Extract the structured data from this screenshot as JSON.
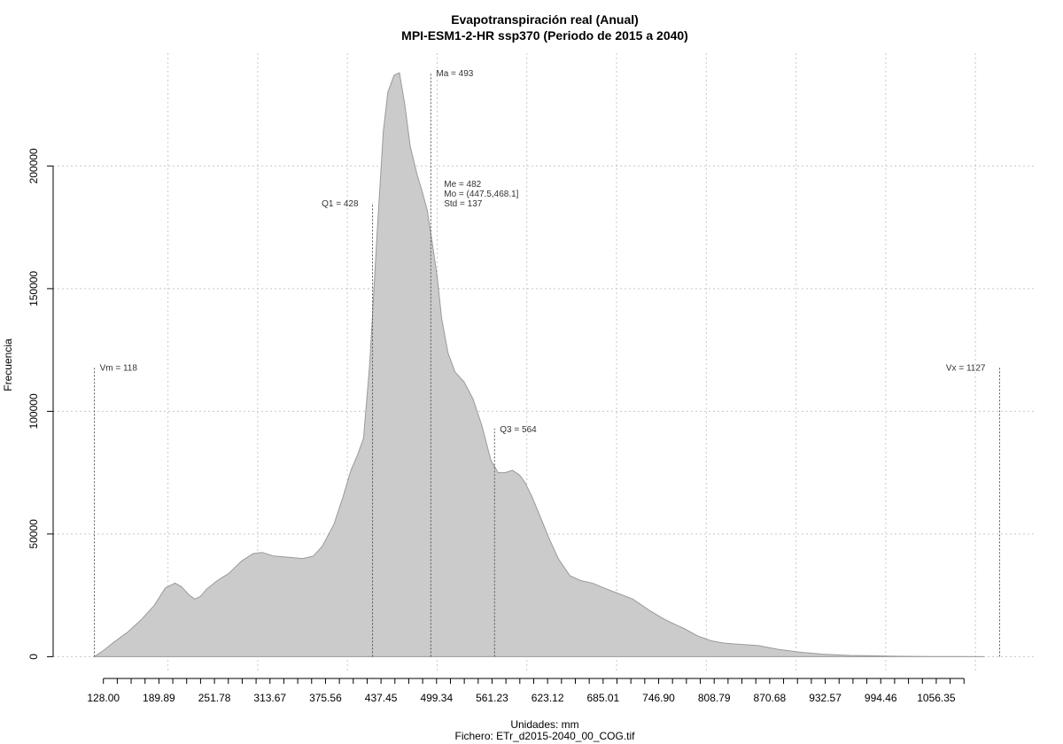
{
  "chart_data": {
    "type": "area",
    "title": "Evapotranspiración real (Anual)",
    "subtitle": "MPI-ESM1-2-HR ssp370 (Periodo de 2015 a 2040)",
    "xlabel": "Unidades: mm",
    "ylabel": "Frecuencia",
    "footer": "Fichero: ETr_d2015-2040_00_COG.tif",
    "xlim": [
      72,
      1168
    ],
    "ylim": [
      -6000,
      246000
    ],
    "grid": true,
    "x_tick_labels": [
      "128.00",
      "189.89",
      "251.78",
      "313.67",
      "375.56",
      "437.45",
      "499.34",
      "561.23",
      "623.12",
      "685.01",
      "746.90",
      "808.79",
      "870.68",
      "932.57",
      "994.46",
      "1056.35"
    ],
    "x_ticks": [
      128.0,
      143.47,
      158.94,
      174.42,
      189.89,
      205.36,
      220.83,
      236.31,
      251.78,
      267.25,
      282.72,
      298.2,
      313.67,
      329.14,
      344.61,
      360.09,
      375.56,
      391.03,
      406.5,
      421.98,
      437.45,
      452.92,
      468.39,
      483.87,
      499.34,
      514.81,
      530.28,
      545.76,
      561.23,
      576.7,
      592.17,
      607.65,
      623.12,
      638.59,
      654.06,
      669.54,
      685.01,
      700.48,
      715.95,
      731.43,
      746.9,
      762.37,
      777.84,
      793.32,
      808.79,
      824.26,
      839.73,
      855.21,
      870.68,
      886.15,
      901.62,
      917.1,
      932.57,
      948.04,
      963.51,
      978.99,
      994.46,
      1009.93,
      1025.4,
      1040.88,
      1056.35,
      1071.82,
      1087.29
    ],
    "y_ticks": [
      0,
      50000,
      100000,
      150000,
      200000
    ],
    "y_tick_labels": [
      "0",
      "50000",
      "100000",
      "150000",
      "200000"
    ],
    "x_grid": [
      200,
      300,
      400,
      500,
      600,
      700,
      800,
      900,
      1000,
      1100
    ],
    "series": [
      {
        "x": [
          118,
          128,
          140,
          155,
          170,
          185,
          197,
          208,
          215,
          224,
          230,
          236,
          243,
          255,
          268,
          282,
          295,
          305,
          318,
          335,
          350,
          362,
          372,
          385,
          395,
          404,
          411,
          418,
          425,
          433,
          440,
          445,
          452,
          458,
          464,
          470,
          478,
          483,
          489,
          494,
          500,
          505,
          512,
          520,
          530,
          540,
          550,
          560,
          568,
          576,
          584,
          592,
          598,
          606,
          615,
          625,
          635,
          648,
          660,
          673,
          686,
          700,
          718,
          736,
          752,
          763,
          775,
          790,
          805,
          820,
          838,
          858,
          880,
          905,
          930,
          960,
          990,
          1020,
          1050,
          1080,
          1110
        ],
        "y": [
          0,
          2500,
          6000,
          10000,
          15000,
          21000,
          28000,
          30000,
          28500,
          25000,
          23500,
          24500,
          27500,
          31000,
          34000,
          39000,
          42000,
          42500,
          41000,
          40500,
          40000,
          41000,
          45000,
          54000,
          65000,
          76000,
          82000,
          89000,
          120000,
          172000,
          214000,
          230000,
          237000,
          238000,
          225000,
          208000,
          196000,
          190000,
          182000,
          170000,
          155000,
          138000,
          124000,
          116000,
          112000,
          105000,
          94000,
          80000,
          75000,
          75000,
          76000,
          74000,
          71000,
          65000,
          57000,
          48000,
          40000,
          33000,
          31000,
          30000,
          28000,
          26000,
          23500,
          19000,
          15500,
          13500,
          11500,
          8500,
          6500,
          5500,
          5000,
          4500,
          3000,
          1800,
          1000,
          500,
          300,
          150,
          60,
          20,
          0
        ]
      }
    ],
    "annotations": [
      {
        "label": "Vm = 118",
        "x": 118,
        "y_top": 118000,
        "text_side": "right"
      },
      {
        "label": "Q1 = 428",
        "x": 428,
        "y_top": 185000,
        "text_side": "left"
      },
      {
        "label": "Ma = 493",
        "x": 493,
        "y_top": 238000,
        "text_side": "right"
      },
      {
        "label": "Me = 482",
        "x": 482,
        "y_top": null,
        "text_side": "right"
      },
      {
        "label": "Mo = (447.5,468.1]",
        "x": 482,
        "y_top": null,
        "text_side": "right"
      },
      {
        "label": "Std = 137",
        "x": 482,
        "y_top": null,
        "text_side": "right"
      },
      {
        "label": "Q3 = 564",
        "x": 564,
        "y_top": 93000,
        "text_side": "right"
      },
      {
        "label": "Vx = 1127",
        "x": 1127,
        "y_top": 118000,
        "text_side": "left"
      }
    ],
    "stats_text_y": [
      193000,
      189000,
      185000
    ],
    "fill_color": "#cbcbcb",
    "line_color": "#9a9a9a"
  }
}
